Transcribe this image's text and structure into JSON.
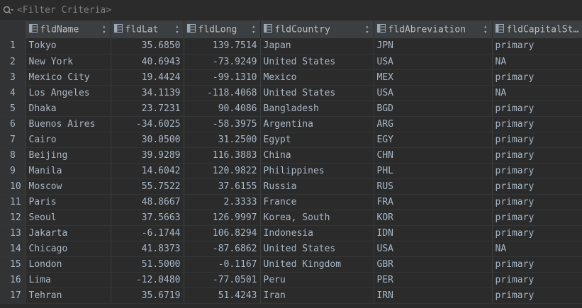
{
  "filter": {
    "placeholder": "<Filter Criteria>"
  },
  "columns": [
    "fldName",
    "fldLat",
    "fldLong",
    "fldCountry",
    "fldAbreviation",
    "fldCapitalSt…"
  ],
  "rows": [
    [
      "1",
      "Tokyo",
      "35.6850",
      "139.7514",
      "Japan",
      "JPN",
      "primary"
    ],
    [
      "2",
      "New York",
      "40.6943",
      "-73.9249",
      "United States",
      "USA",
      "NA"
    ],
    [
      "3",
      "Mexico City",
      "19.4424",
      "-99.1310",
      "Mexico",
      "MEX",
      "primary"
    ],
    [
      "4",
      "Los Angeles",
      "34.1139",
      "-118.4068",
      "United States",
      "USA",
      "NA"
    ],
    [
      "5",
      "Dhaka",
      "23.7231",
      "90.4086",
      "Bangladesh",
      "BGD",
      "primary"
    ],
    [
      "6",
      "Buenos Aires",
      "-34.6025",
      "-58.3975",
      "Argentina",
      "ARG",
      "primary"
    ],
    [
      "7",
      "Cairo",
      "30.0500",
      "31.2500",
      "Egypt",
      "EGY",
      "primary"
    ],
    [
      "8",
      "Beijing",
      "39.9289",
      "116.3883",
      "China",
      "CHN",
      "primary"
    ],
    [
      "9",
      "Manila",
      "14.6042",
      "120.9822",
      "Philippines",
      "PHL",
      "primary"
    ],
    [
      "10",
      "Moscow",
      "55.7522",
      "37.6155",
      "Russia",
      "RUS",
      "primary"
    ],
    [
      "11",
      "Paris",
      "48.8667",
      "2.3333",
      "France",
      "FRA",
      "primary"
    ],
    [
      "12",
      "Seoul",
      "37.5663",
      "126.9997",
      "Korea, South",
      "KOR",
      "primary"
    ],
    [
      "13",
      "Jakarta",
      "-6.1744",
      "106.8294",
      "Indonesia",
      "IDN",
      "primary"
    ],
    [
      "14",
      "Chicago",
      "41.8373",
      "-87.6862",
      "United States",
      "USA",
      "NA"
    ],
    [
      "15",
      "London",
      "51.5000",
      "-0.1167",
      "United Kingdom",
      "GBR",
      "primary"
    ],
    [
      "16",
      "Lima",
      "-12.0480",
      "-77.0501",
      "Peru",
      "PER",
      "primary"
    ],
    [
      "17",
      "Tehran",
      "35.6719",
      "51.4243",
      "Iran",
      "IRN",
      "primary"
    ]
  ],
  "colors": {
    "background": "#2b2b2b",
    "header": "#3c3f41",
    "text": "#a9b7c6"
  }
}
